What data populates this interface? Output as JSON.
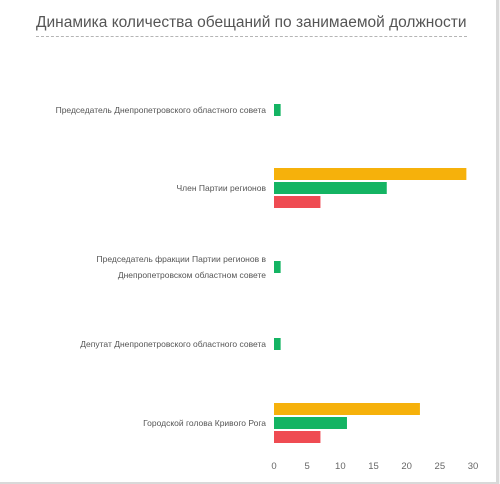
{
  "title": "Динамика количества обещаний по занимаемой должности",
  "colors": {
    "accent_orange": "#f6b10b",
    "accent_green": "#14b463",
    "accent_red": "#ef4b52"
  },
  "chart_data": {
    "type": "bar",
    "orientation": "horizontal",
    "title": "Динамика количества обещаний по занимаемой должности",
    "categories": [
      [
        "Председатель Днепропетровского областного совета"
      ],
      [
        "Член Партии регионов"
      ],
      [
        "Председатель фракции Партии регионов в",
        "Днепропетровском областном совете"
      ],
      [
        "Депутат Днепропетровского областного совета"
      ],
      [
        "Городской голова Кривого Рога"
      ]
    ],
    "series": [
      {
        "color": "#f6b10b",
        "values": [
          0,
          29,
          0,
          0,
          22
        ]
      },
      {
        "color": "#14b463",
        "values": [
          1,
          17,
          1,
          1,
          11
        ]
      },
      {
        "color": "#ef4b52",
        "values": [
          0,
          7,
          0,
          0,
          7
        ]
      }
    ],
    "xlim": [
      0,
      30
    ],
    "xticks": [
      0,
      5,
      10,
      15,
      20,
      25,
      30
    ],
    "grid": false,
    "legend": "none"
  }
}
